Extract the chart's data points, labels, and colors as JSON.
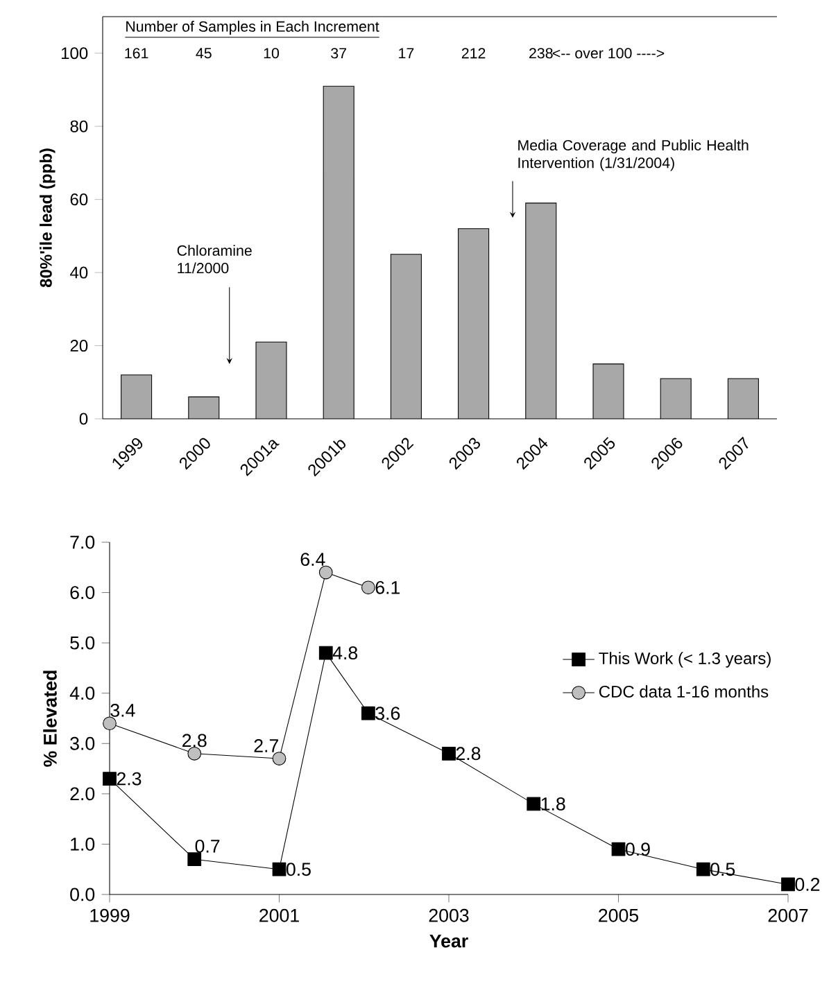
{
  "chart_data": [
    {
      "type": "bar",
      "categories": [
        "1999",
        "2000",
        "2001a",
        "2001b",
        "2002",
        "2003",
        "2004",
        "2005",
        "2006",
        "2007"
      ],
      "values": [
        12,
        6,
        21,
        91,
        45,
        52,
        59,
        15,
        11,
        11
      ],
      "color": "#a8a8a8",
      "ylabel": "80%'ile lead (ppb)",
      "ylim": [
        0,
        110
      ],
      "yticks": [
        0,
        20,
        40,
        60,
        80,
        100
      ],
      "annotations": [
        "Number of Samples in Each Increment",
        "161",
        "45",
        "10",
        "37",
        "17",
        "212",
        "238",
        "<-- over 100 ---->",
        "Chloramine 11/2000",
        "Media Coverage and Public Health Intervention (1/31/2004)"
      ]
    },
    {
      "type": "line",
      "x": [
        1999,
        2000,
        2001,
        2001.55,
        2002.05,
        2003,
        2004,
        2005,
        2006,
        2007
      ],
      "series": [
        {
          "name": "This Work (< 1.3 years)",
          "color": "#000000",
          "marker": "square",
          "values": [
            2.3,
            0.7,
            0.5,
            4.8,
            3.6,
            2.8,
            1.8,
            0.9,
            0.5,
            0.2
          ]
        },
        {
          "name": "CDC data 1-16 months",
          "color": "#000000",
          "marker": "circle",
          "x": [
            1999,
            2000,
            2001,
            2001.55,
            2002.05
          ],
          "values": [
            3.4,
            2.8,
            2.7,
            6.4,
            6.1
          ]
        }
      ],
      "xlabel": "Year",
      "ylabel": "% Elevated",
      "xlim": [
        1999,
        2007
      ],
      "xticks": [
        1999,
        2001,
        2003,
        2005,
        2007
      ],
      "ylim": [
        0,
        7
      ],
      "yticks": [
        {
          "value": 0,
          "label": "0.0"
        },
        {
          "value": 1,
          "label": "1.0"
        },
        {
          "value": 2,
          "label": "2.0"
        },
        {
          "value": 3,
          "label": "3.0"
        },
        {
          "value": 4,
          "label": "4.0"
        },
        {
          "value": 5,
          "label": "5.0"
        },
        {
          "value": 6,
          "label": "6.0"
        },
        {
          "value": 7,
          "label": "7.0"
        }
      ],
      "data_labels": true,
      "legend": "right"
    }
  ]
}
